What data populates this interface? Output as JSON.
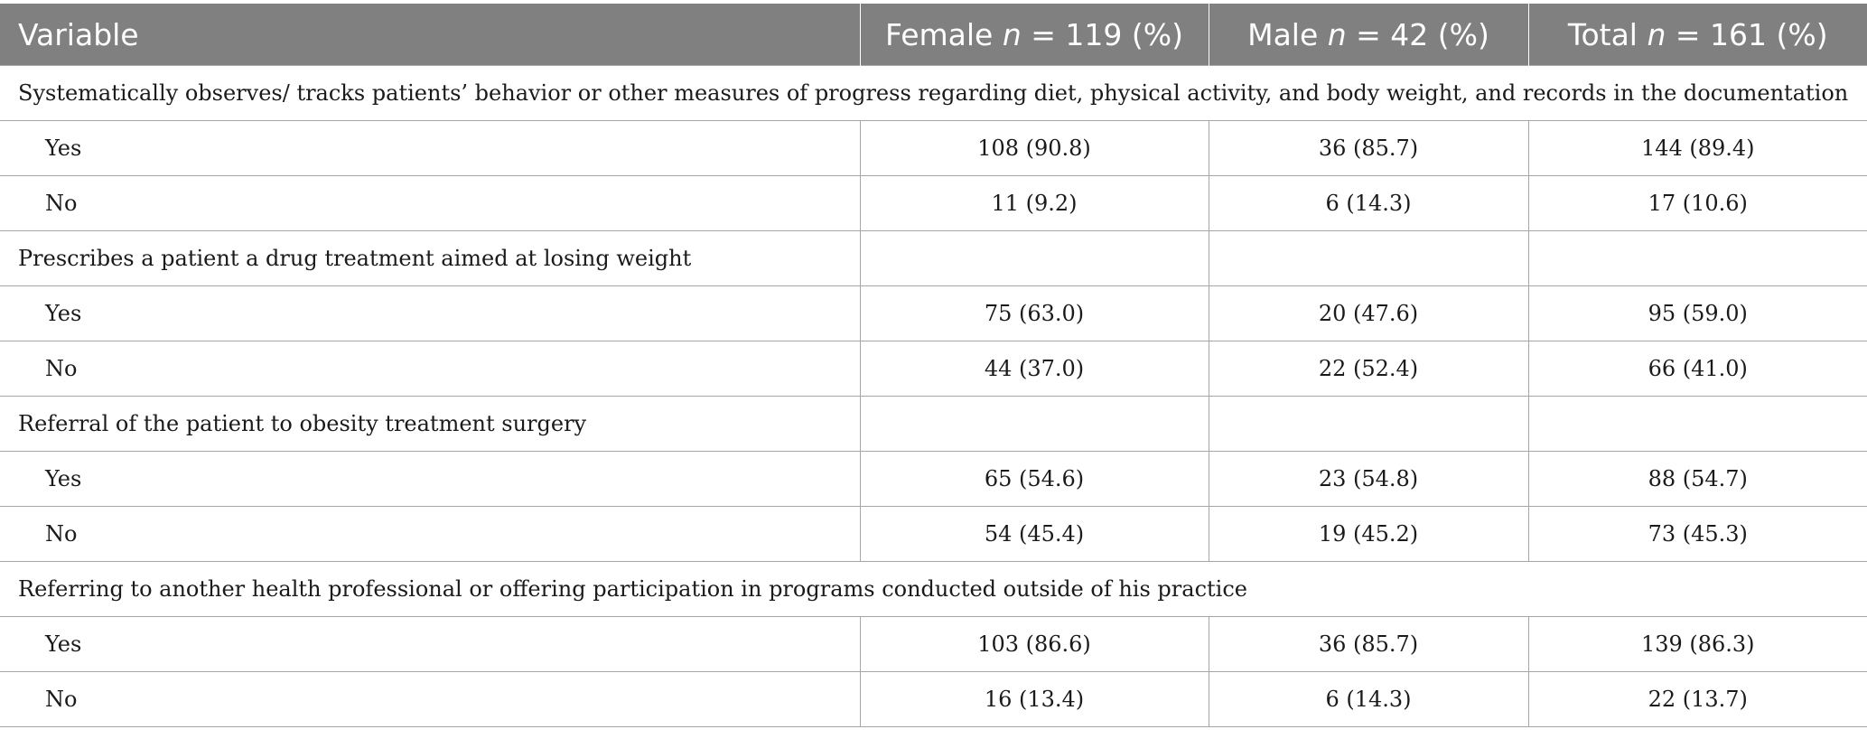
{
  "header": {
    "variable": "Variable",
    "female_prefix": "Female ",
    "female_suffix": " = 119 (%)",
    "male_prefix": "Male ",
    "male_suffix": " = 42 (%)",
    "total_prefix": "Total ",
    "total_suffix": " = 161 (%)",
    "n": "n"
  },
  "sections": [
    {
      "title": "Systematically observes/ tracks patients’ behavior or other measures of progress regarding diet, physical activity, and body weight, and records in the documentation",
      "rows": [
        {
          "label": "Yes",
          "female": "108 (90.8)",
          "male": "36 (85.7)",
          "total": "144 (89.4)"
        },
        {
          "label": "No",
          "female": "11 (9.2)",
          "male": "6 (14.3)",
          "total": "17 (10.6)"
        }
      ]
    },
    {
      "title": "Prescribes a patient a drug treatment aimed at losing weight",
      "rows": [
        {
          "label": "Yes",
          "female": "75 (63.0)",
          "male": "20 (47.6)",
          "total": "95 (59.0)"
        },
        {
          "label": "No",
          "female": "44 (37.0)",
          "male": "22 (52.4)",
          "total": "66 (41.0)"
        }
      ]
    },
    {
      "title": "Referral of the patient to obesity treatment surgery",
      "rows": [
        {
          "label": "Yes",
          "female": "65 (54.6)",
          "male": "23 (54.8)",
          "total": "88 (54.7)"
        },
        {
          "label": "No",
          "female": "54 (45.4)",
          "male": "19 (45.2)",
          "total": "73 (45.3)"
        }
      ]
    },
    {
      "title": "Referring to another health professional or offering participation in programs conducted outside of his practice",
      "rows": [
        {
          "label": "Yes",
          "female": "103 (86.6)",
          "male": "36 (85.7)",
          "total": "139 (86.3)"
        },
        {
          "label": "No",
          "female": "16 (13.4)",
          "male": "6 (14.3)",
          "total": "22 (13.7)"
        }
      ]
    }
  ]
}
